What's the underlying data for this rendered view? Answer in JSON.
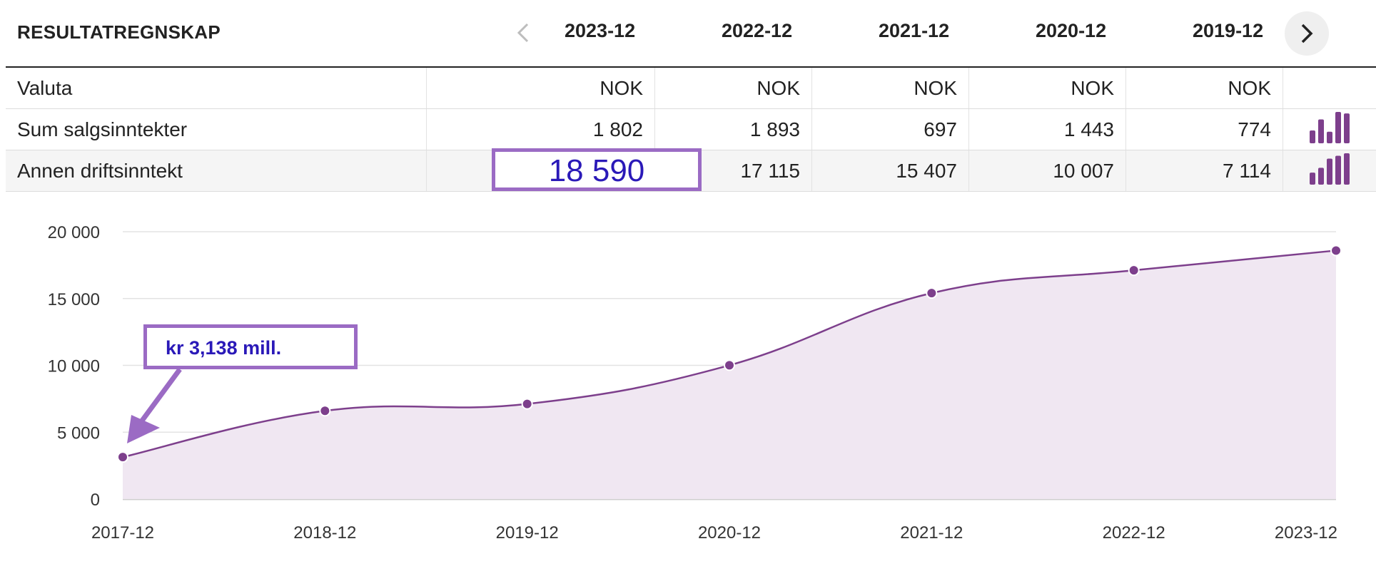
{
  "header": {
    "title": "RESULTATREGNSKAP",
    "years": [
      "2023-12",
      "2022-12",
      "2021-12",
      "2020-12",
      "2019-12"
    ]
  },
  "table": {
    "rows": [
      {
        "label": "Valuta",
        "values": [
          "NOK",
          "NOK",
          "NOK",
          "NOK",
          "NOK"
        ]
      },
      {
        "label": "Sum salgsinntekter",
        "values": [
          "1 802",
          "1 893",
          "697",
          "1 443",
          "774"
        ]
      },
      {
        "label": "Annen driftsinntekt",
        "values": [
          "18 590",
          "17 115",
          "15 407",
          "10 007",
          "7 114"
        ]
      }
    ]
  },
  "highlight": {
    "value": "18 590"
  },
  "callout": {
    "text": "kr 3,138 mill."
  },
  "colors": {
    "series": "#7d3f8c",
    "fill": "#f0e7f2",
    "highlight_border": "#9b6bc4",
    "highlight_text": "#2a19b8"
  },
  "sparklines": [
    {
      "row": "Sum salgsinntekter",
      "values": [
        774,
        1443,
        697,
        1893,
        1802
      ]
    },
    {
      "row": "Annen driftsinntekt",
      "values": [
        7114,
        10007,
        15407,
        17115,
        18590
      ]
    }
  ],
  "chart_data": {
    "type": "area",
    "categories": [
      "2017-12",
      "2018-12",
      "2019-12",
      "2020-12",
      "2021-12",
      "2022-12",
      "2023-12"
    ],
    "values": [
      3138,
      6600,
      7114,
      10007,
      15407,
      17115,
      18590
    ],
    "ylim": [
      0,
      20000
    ],
    "yticks": [
      "0",
      "5 000",
      "10 000",
      "15 000",
      "20 000"
    ],
    "grid": true
  }
}
